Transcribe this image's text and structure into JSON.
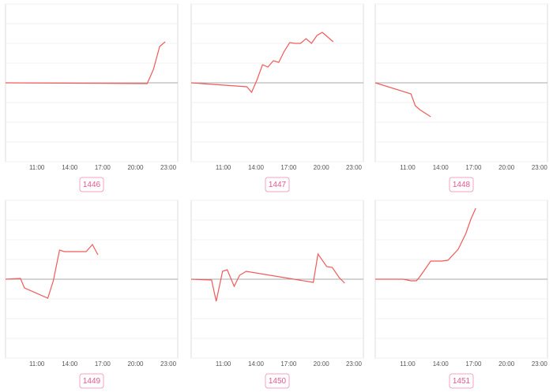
{
  "chart_data": [
    {
      "type": "line",
      "title": "1446",
      "x": [
        8.14,
        21.07,
        21.64,
        22.21,
        22.71
      ],
      "series": [
        {
          "color": "#f05a5a",
          "values": [
            0,
            -0.04,
            0.68,
            1.84,
            2.08
          ]
        }
      ],
      "xlim": [
        8.14,
        23.86
      ],
      "ylim": [
        -4,
        4
      ],
      "xticks": [
        {
          "value": 11,
          "label": "11:00"
        },
        {
          "value": 14,
          "label": "14:00"
        },
        {
          "value": 17,
          "label": "17:00"
        },
        {
          "value": 20,
          "label": "20:00"
        },
        {
          "value": 23,
          "label": "23:00"
        }
      ],
      "yticks": [
        -4,
        -3,
        -2,
        -1,
        0,
        1,
        2,
        3,
        4
      ],
      "grid": true
    },
    {
      "type": "line",
      "title": "1447",
      "x": [
        8.05,
        13.16,
        13.6,
        14.1,
        14.6,
        15.1,
        15.6,
        16.1,
        16.6,
        17.1,
        17.6,
        18.1,
        18.6,
        19.1,
        19.6,
        20.1,
        20.6,
        21.1
      ],
      "series": [
        {
          "color": "#f05a5a",
          "values": [
            0,
            -0.2,
            -0.48,
            0.16,
            0.92,
            0.8,
            1.12,
            1.04,
            1.6,
            2.04,
            2.0,
            2.0,
            2.24,
            2.0,
            2.4,
            2.56,
            2.32,
            2.08
          ]
        }
      ],
      "xlim": [
        8.05,
        23.87
      ],
      "ylim": [
        -4,
        4
      ],
      "xticks": [
        {
          "value": 11,
          "label": "11:00"
        },
        {
          "value": 14,
          "label": "14:00"
        },
        {
          "value": 17,
          "label": "17:00"
        },
        {
          "value": 20,
          "label": "20:00"
        },
        {
          "value": 23,
          "label": "23:00"
        }
      ],
      "yticks": [
        -4,
        -3,
        -2,
        -1,
        0,
        1,
        2,
        3,
        4
      ],
      "grid": true
    },
    {
      "type": "line",
      "title": "1448",
      "x": [
        8.05,
        11.3,
        11.7,
        12.1,
        13.1
      ],
      "series": [
        {
          "color": "#f05a5a",
          "values": [
            0,
            -0.56,
            -1.16,
            -1.36,
            -1.72
          ]
        }
      ],
      "xlim": [
        8.05,
        23.73
      ],
      "ylim": [
        -4,
        4
      ],
      "xticks": [
        {
          "value": 11,
          "label": "11:00"
        },
        {
          "value": 14,
          "label": "14:00"
        },
        {
          "value": 17,
          "label": "17:00"
        },
        {
          "value": 20,
          "label": "20:00"
        },
        {
          "value": 23,
          "label": "23:00"
        }
      ],
      "yticks": [
        -4,
        -3,
        -2,
        -1,
        0,
        1,
        2,
        3,
        4
      ],
      "grid": true
    },
    {
      "type": "line",
      "title": "1449",
      "x": [
        8.14,
        9.5,
        9.86,
        12.0,
        12.5,
        13.07,
        13.5,
        15.5,
        16.07,
        16.57
      ],
      "series": [
        {
          "color": "#f05a5a",
          "values": [
            0,
            0.04,
            -0.44,
            -0.96,
            -0.08,
            1.48,
            1.4,
            1.4,
            1.76,
            1.24
          ]
        }
      ],
      "xlim": [
        8.14,
        23.86
      ],
      "ylim": [
        -4,
        4
      ],
      "xticks": [
        {
          "value": 11,
          "label": "11:00"
        },
        {
          "value": 14,
          "label": "14:00"
        },
        {
          "value": 17,
          "label": "17:00"
        },
        {
          "value": 20,
          "label": "20:00"
        },
        {
          "value": 23,
          "label": "23:00"
        }
      ],
      "yticks": [
        -4,
        -3,
        -2,
        -1,
        0,
        1,
        2,
        3,
        4
      ],
      "grid": true
    },
    {
      "type": "line",
      "title": "1450",
      "x": [
        8.05,
        9.92,
        10.35,
        10.93,
        11.36,
        12.0,
        12.5,
        13.1,
        19.27,
        19.7,
        20.5,
        21.0,
        21.65,
        22.15
      ],
      "series": [
        {
          "color": "#f05a5a",
          "values": [
            0,
            -0.04,
            -1.12,
            0.4,
            0.48,
            -0.36,
            0.2,
            0.4,
            -0.16,
            1.28,
            0.64,
            0.6,
            0.08,
            -0.2
          ]
        }
      ],
      "xlim": [
        8.05,
        23.87
      ],
      "ylim": [
        -4,
        4
      ],
      "xticks": [
        {
          "value": 11,
          "label": "11:00"
        },
        {
          "value": 14,
          "label": "14:00"
        },
        {
          "value": 17,
          "label": "17:00"
        },
        {
          "value": 20,
          "label": "20:00"
        },
        {
          "value": 23,
          "label": "23:00"
        }
      ],
      "yticks": [
        -4,
        -3,
        -2,
        -1,
        0,
        1,
        2,
        3,
        4
      ],
      "grid": true
    },
    {
      "type": "line",
      "title": "1451",
      "x": [
        8.05,
        10.6,
        11.3,
        11.8,
        12.1,
        12.5,
        13.1,
        14.1,
        14.67,
        15.6,
        16.3,
        16.75,
        17.2
      ],
      "series": [
        {
          "color": "#f05a5a",
          "values": [
            0,
            0,
            -0.08,
            -0.08,
            0.12,
            0.44,
            0.92,
            0.92,
            0.96,
            1.52,
            2.32,
            3.04,
            3.6
          ]
        }
      ],
      "xlim": [
        8.05,
        23.73
      ],
      "ylim": [
        -4,
        4
      ],
      "xticks": [
        {
          "value": 11,
          "label": "11:00"
        },
        {
          "value": 14,
          "label": "14:00"
        },
        {
          "value": 17,
          "label": "17:00"
        },
        {
          "value": 20,
          "label": "20:00"
        },
        {
          "value": 23,
          "label": "23:00"
        }
      ],
      "yticks": [
        -4,
        -3,
        -2,
        -1,
        0,
        1,
        2,
        3,
        4
      ],
      "grid": true
    }
  ]
}
